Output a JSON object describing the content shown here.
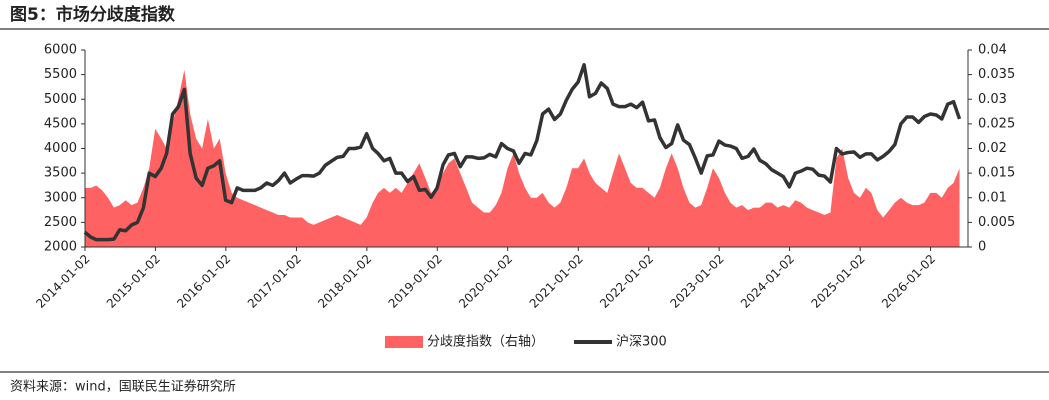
{
  "chart_data": {
    "type": "area-line",
    "title": "图5：市场分歧度指数",
    "source": "资料来源：wind，国联民生证券研究所",
    "x": [
      "2014-01",
      "2014-02",
      "2014-03",
      "2014-04",
      "2014-05",
      "2014-06",
      "2014-07",
      "2014-08",
      "2014-09",
      "2014-10",
      "2014-11",
      "2014-12",
      "2015-01",
      "2015-02",
      "2015-03",
      "2015-04",
      "2015-05",
      "2015-06",
      "2015-07",
      "2015-08",
      "2015-09",
      "2015-10",
      "2015-11",
      "2015-12",
      "2016-01",
      "2016-02",
      "2016-03",
      "2016-04",
      "2016-05",
      "2016-06",
      "2016-07",
      "2016-08",
      "2016-09",
      "2016-10",
      "2016-11",
      "2016-12",
      "2017-01",
      "2017-02",
      "2017-03",
      "2017-04",
      "2017-05",
      "2017-06",
      "2017-07",
      "2017-08",
      "2017-09",
      "2017-10",
      "2017-11",
      "2017-12",
      "2018-01",
      "2018-02",
      "2018-03",
      "2018-04",
      "2018-05",
      "2018-06",
      "2018-07",
      "2018-08",
      "2018-09",
      "2018-10",
      "2018-11",
      "2018-12",
      "2019-01",
      "2019-02",
      "2019-03",
      "2019-04",
      "2019-05",
      "2019-06",
      "2019-07",
      "2019-08",
      "2019-09",
      "2019-10",
      "2019-11",
      "2019-12",
      "2020-01",
      "2020-02",
      "2020-03",
      "2020-04",
      "2020-05",
      "2020-06",
      "2020-07",
      "2020-08",
      "2020-09",
      "2020-10",
      "2020-11",
      "2020-12",
      "2021-01",
      "2021-02",
      "2021-03",
      "2021-04",
      "2021-05",
      "2021-06",
      "2021-07",
      "2021-08",
      "2021-09",
      "2021-10",
      "2021-11",
      "2021-12",
      "2022-01",
      "2022-02",
      "2022-03",
      "2022-04",
      "2022-05",
      "2022-06",
      "2022-07",
      "2022-08",
      "2022-09",
      "2022-10",
      "2022-11",
      "2022-12",
      "2023-01",
      "2023-02",
      "2023-03",
      "2023-04",
      "2023-05",
      "2023-06",
      "2023-07",
      "2023-08",
      "2023-09",
      "2023-10",
      "2023-11",
      "2023-12",
      "2024-01",
      "2024-02",
      "2024-03",
      "2024-04",
      "2024-05",
      "2024-06",
      "2024-07",
      "2024-08",
      "2024-09",
      "2024-10",
      "2024-11",
      "2024-12",
      "2025-01",
      "2025-02",
      "2025-03",
      "2025-04",
      "2025-05",
      "2025-06",
      "2025-07",
      "2025-08",
      "2025-09",
      "2025-10",
      "2025-11",
      "2025-12",
      "2026-01",
      "2026-02",
      "2026-03",
      "2026-04",
      "2026-05",
      "2026-06"
    ],
    "series": [
      {
        "name": "分歧度指数（右轴）",
        "color": "#ff6262",
        "axis": "y2",
        "kind": "area",
        "values": [
          0.012,
          0.012,
          0.0125,
          0.0115,
          0.01,
          0.008,
          0.0085,
          0.0095,
          0.0085,
          0.009,
          0.012,
          0.016,
          0.024,
          0.022,
          0.02,
          0.025,
          0.03,
          0.036,
          0.027,
          0.022,
          0.02,
          0.026,
          0.02,
          0.022,
          0.015,
          0.011,
          0.01,
          0.0095,
          0.009,
          0.0085,
          0.008,
          0.0075,
          0.007,
          0.0065,
          0.0065,
          0.006,
          0.006,
          0.006,
          0.005,
          0.0045,
          0.005,
          0.0055,
          0.006,
          0.0065,
          0.006,
          0.0055,
          0.005,
          0.0045,
          0.006,
          0.009,
          0.011,
          0.012,
          0.011,
          0.012,
          0.011,
          0.013,
          0.015,
          0.017,
          0.014,
          0.011,
          0.012,
          0.015,
          0.017,
          0.018,
          0.015,
          0.012,
          0.009,
          0.008,
          0.007,
          0.007,
          0.0085,
          0.011,
          0.016,
          0.019,
          0.015,
          0.012,
          0.01,
          0.01,
          0.011,
          0.009,
          0.008,
          0.009,
          0.012,
          0.016,
          0.016,
          0.018,
          0.015,
          0.013,
          0.012,
          0.011,
          0.015,
          0.019,
          0.016,
          0.013,
          0.012,
          0.012,
          0.011,
          0.01,
          0.012,
          0.016,
          0.019,
          0.016,
          0.012,
          0.009,
          0.008,
          0.0085,
          0.012,
          0.016,
          0.014,
          0.011,
          0.009,
          0.008,
          0.0085,
          0.0075,
          0.008,
          0.008,
          0.009,
          0.009,
          0.008,
          0.0085,
          0.008,
          0.0095,
          0.009,
          0.008,
          0.0075,
          0.007,
          0.0065,
          0.007,
          0.018,
          0.02,
          0.014,
          0.011,
          0.01,
          0.012,
          0.011,
          0.0075,
          0.006,
          0.0075,
          0.009,
          0.01,
          0.009,
          0.0085,
          0.0085,
          0.009,
          0.011,
          0.011,
          0.01,
          0.012,
          0.013,
          0.016
        ]
      },
      {
        "name": "沪深300",
        "color": "#333333",
        "kind": "line",
        "values": [
          2300,
          2200,
          2150,
          2150,
          2150,
          2160,
          2350,
          2330,
          2450,
          2500,
          2800,
          3500,
          3430,
          3600,
          3900,
          4700,
          4850,
          5200,
          3900,
          3400,
          3250,
          3600,
          3650,
          3750,
          2950,
          2900,
          3200,
          3150,
          3150,
          3150,
          3200,
          3300,
          3250,
          3350,
          3500,
          3300,
          3380,
          3450,
          3450,
          3440,
          3500,
          3660,
          3740,
          3820,
          3840,
          4000,
          4000,
          4030,
          4300,
          4000,
          3900,
          3750,
          3800,
          3500,
          3500,
          3330,
          3430,
          3150,
          3170,
          3010,
          3200,
          3670,
          3870,
          3900,
          3630,
          3830,
          3830,
          3800,
          3810,
          3880,
          3830,
          4100,
          4000,
          3950,
          3700,
          3900,
          3870,
          4160,
          4700,
          4800,
          4590,
          4700,
          4980,
          5200,
          5350,
          5700,
          5050,
          5120,
          5330,
          5220,
          4900,
          4850,
          4850,
          4900,
          4830,
          4940,
          4560,
          4580,
          4220,
          4020,
          4100,
          4480,
          4170,
          4080,
          3800,
          3500,
          3850,
          3870,
          4150,
          4070,
          4050,
          4000,
          3800,
          3840,
          3990,
          3760,
          3690,
          3570,
          3500,
          3430,
          3220,
          3500,
          3540,
          3600,
          3580,
          3460,
          3440,
          3320,
          4000,
          3890,
          3920,
          3930,
          3820,
          3890,
          3890,
          3770,
          3840,
          3940,
          4080,
          4500,
          4640,
          4640,
          4530,
          4650,
          4700,
          4680,
          4600,
          4900,
          4950,
          4600
        ]
      }
    ],
    "xlim": [
      "2014-01-02",
      "2026-07-15"
    ],
    "xticks": [
      "2014-01-02",
      "2015-01-02",
      "2016-01-02",
      "2017-01-02",
      "2018-01-02",
      "2019-01-02",
      "2020-01-02",
      "2021-01-02",
      "2022-01-02",
      "2023-01-02",
      "2024-01-02",
      "2025-01-02",
      "2026-01-02"
    ],
    "ylim": [
      2000,
      6000
    ],
    "yticks": [
      2000,
      2500,
      3000,
      3500,
      4000,
      4500,
      5000,
      5500,
      6000
    ],
    "y2lim": [
      0,
      0.04
    ],
    "y2ticks": [
      0,
      0.005,
      0.01,
      0.015,
      0.02,
      0.025,
      0.03,
      0.035,
      0.04
    ],
    "legend": "bottom"
  }
}
